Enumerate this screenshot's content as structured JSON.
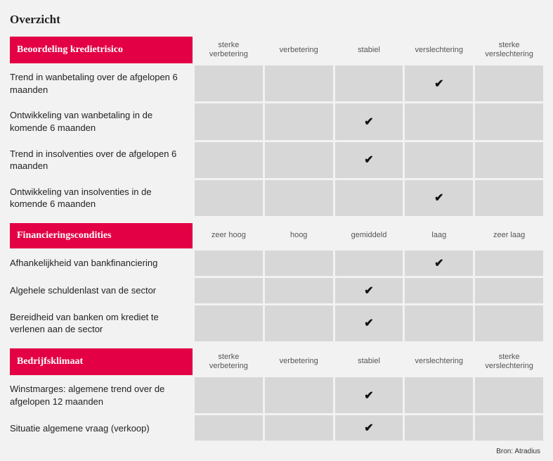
{
  "title": "Overzicht",
  "checkmark": "✔",
  "colors": {
    "background": "#f2f2f2",
    "header_bg": "#e30044",
    "header_text": "#ffffff",
    "cell_bg": "#d7d7d7",
    "text": "#222222",
    "subtext": "#555555"
  },
  "sections": [
    {
      "header": "Beoordeling kredietrisico",
      "columns": [
        "sterke\nverbetering",
        "verbetering",
        "stabiel",
        "verslechtering",
        "sterke\nverslechtering"
      ],
      "rows": [
        {
          "label": "Trend in wanbetaling over de afgelopen 6 maanden",
          "checked": 3
        },
        {
          "label": "Ontwikkeling van wanbetaling in de komende 6 maanden",
          "checked": 2
        },
        {
          "label": "Trend in insolventies over de afgelopen 6 maanden",
          "checked": 2
        },
        {
          "label": "Ontwikkeling van insolventies in de komende 6 maanden",
          "checked": 3
        }
      ]
    },
    {
      "header": "Financieringscondities",
      "columns": [
        "zeer hoog",
        "hoog",
        "gemiddeld",
        "laag",
        "zeer laag"
      ],
      "rows": [
        {
          "label": "Afhankelijkheid van bankfinanciering",
          "checked": 3
        },
        {
          "label": "Algehele schuldenlast van de sector",
          "checked": 2
        },
        {
          "label": "Bereidheid van banken om krediet te verlenen aan de sector",
          "checked": 2
        }
      ]
    },
    {
      "header": "Bedrijfsklimaat",
      "columns": [
        "sterke\nverbetering",
        "verbetering",
        "stabiel",
        "verslechtering",
        "sterke\nverslechtering"
      ],
      "rows": [
        {
          "label": "Winstmarges: algemene trend over de afgelopen 12 maanden",
          "checked": 2
        },
        {
          "label": "Situatie algemene vraag (verkoop)",
          "checked": 2
        }
      ]
    }
  ],
  "source": "Bron: Atradius"
}
